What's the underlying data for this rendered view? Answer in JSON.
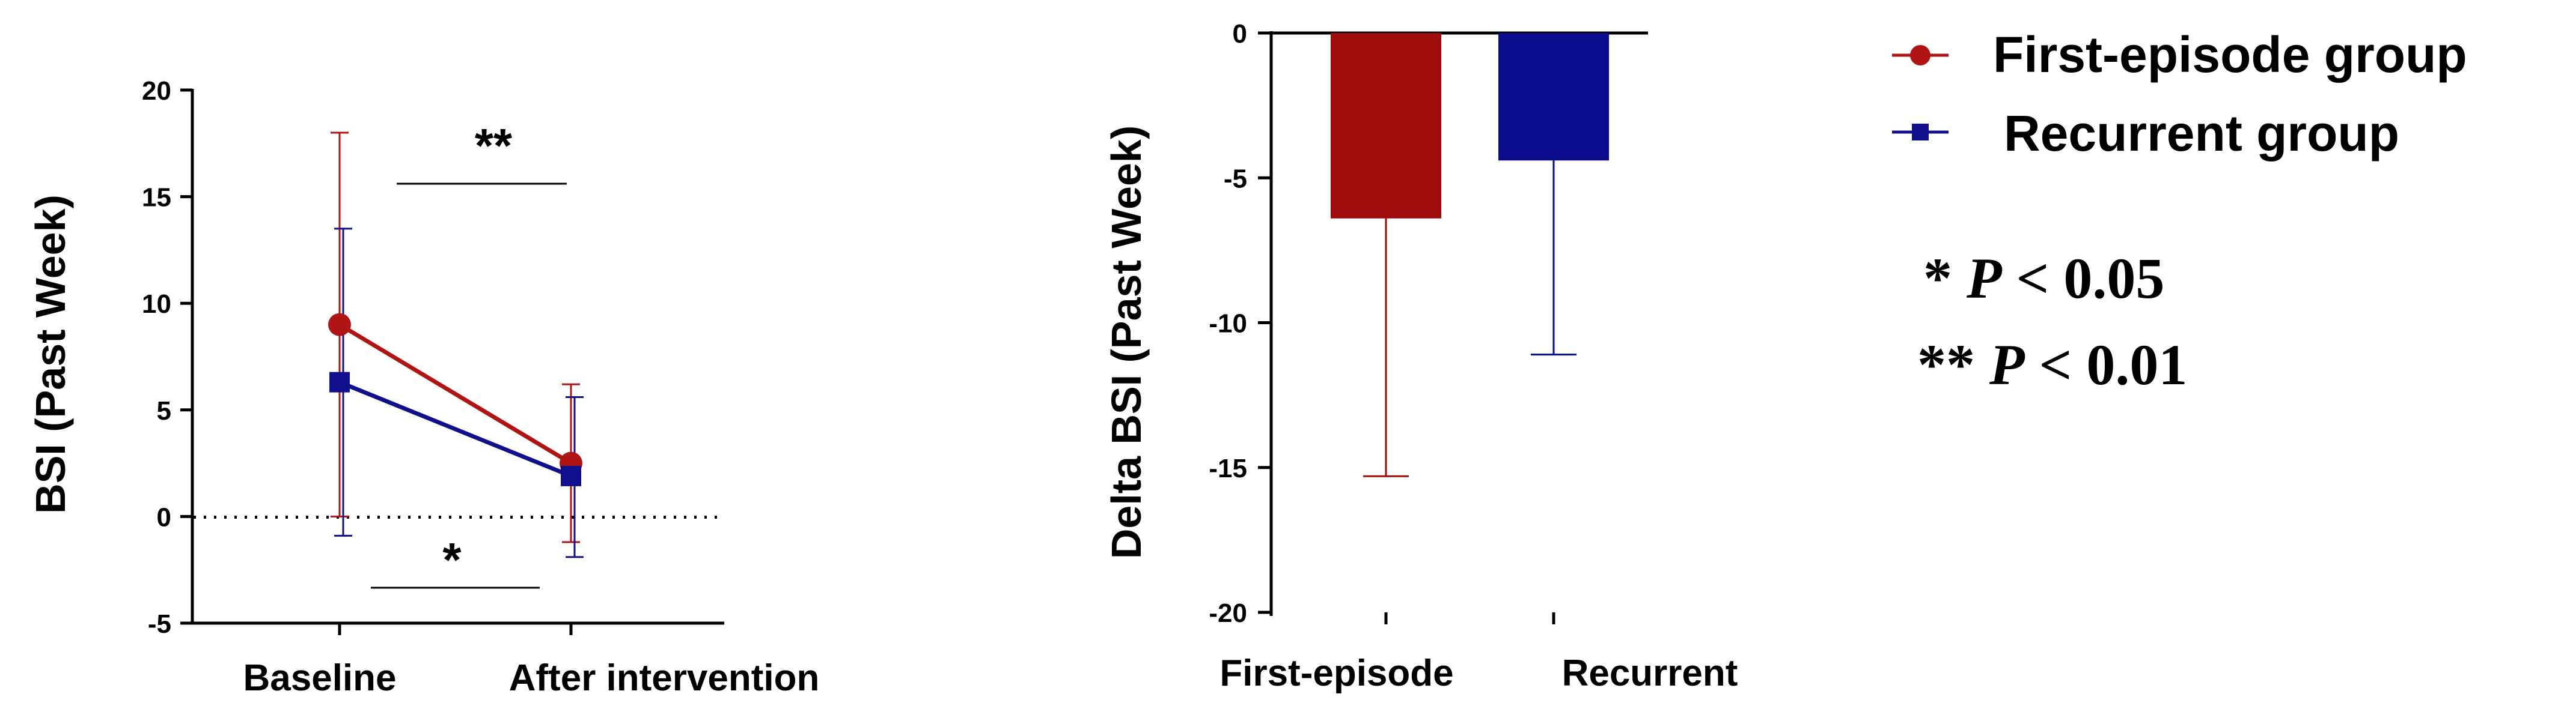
{
  "chart_data": [
    {
      "type": "line",
      "categories": [
        "Baseline",
        "After intervention"
      ],
      "ylabel": "BSI (Past Week)",
      "ylim": [
        -5,
        20
      ],
      "yticks": [
        -5,
        0,
        5,
        10,
        15,
        20
      ],
      "ytick_labels": [
        "-5",
        "0",
        "5",
        "10",
        "15",
        "20"
      ],
      "reference_line": {
        "y": 0,
        "style": "dotted"
      },
      "series": [
        {
          "name": "First-episode group",
          "color": "#b01515",
          "marker": "circle",
          "values": [
            9.0,
            2.5
          ],
          "err_upper": [
            18.0,
            6.2
          ],
          "err_lower": [
            0.0,
            -1.2
          ]
        },
        {
          "name": "Recurrent group",
          "color": "#10108c",
          "marker": "square",
          "values": [
            6.3,
            1.9
          ],
          "err_upper": [
            13.5,
            5.6
          ],
          "err_lower": [
            -0.9,
            -1.9
          ]
        }
      ],
      "annotations": [
        {
          "text": "**",
          "position": "above"
        },
        {
          "text": "*",
          "position": "below"
        }
      ]
    },
    {
      "type": "bar",
      "categories": [
        "First-episode",
        "Recurrent"
      ],
      "ylabel": "Delta BSI (Past Week)",
      "ylim": [
        -20,
        0
      ],
      "yticks": [
        -20,
        -15,
        -10,
        -5,
        0
      ],
      "ytick_labels": [
        "-20",
        "-15",
        "-10",
        "-5",
        "0"
      ],
      "values": [
        -6.4,
        -4.4
      ],
      "err_lower": [
        -15.3,
        -11.1
      ],
      "colors": [
        "#9e0b0b",
        "#0a0a8c"
      ]
    }
  ],
  "legend": {
    "placement": "top-right",
    "items": [
      {
        "label": "First-episode group",
        "color": "#b01515",
        "marker": "circle"
      },
      {
        "label": "Recurrent group",
        "color": "#10108c",
        "marker": "square"
      }
    ]
  },
  "significance_notes": [
    {
      "stars": "* ",
      "p": "P",
      "rest": " < 0.05"
    },
    {
      "stars": "** ",
      "p": "P",
      "rest": " < 0.01"
    }
  ]
}
